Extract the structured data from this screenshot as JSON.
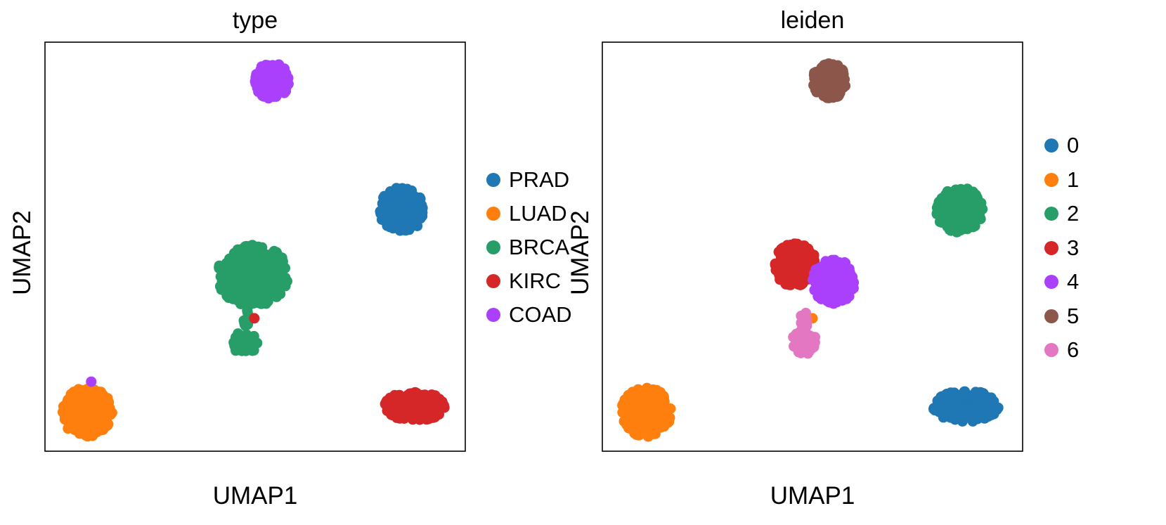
{
  "chart_data": [
    {
      "type": "scatter",
      "title": "type",
      "xlabel": "UMAP1",
      "ylabel": "UMAP2",
      "xlim": [
        0,
        10
      ],
      "ylim": [
        0,
        10
      ],
      "grid": false,
      "legend_placement": "right",
      "series": [
        {
          "name": "PRAD",
          "color": "#1f77b4",
          "clusters": [
            {
              "cx": 8.5,
              "cy": 5.9,
              "rx": 0.55,
              "ry": 0.55,
              "n": 190
            }
          ]
        },
        {
          "name": "LUAD",
          "color": "#ff7f0e",
          "clusters": [
            {
              "cx": 1.0,
              "cy": 0.95,
              "rx": 0.6,
              "ry": 0.6,
              "n": 200
            }
          ]
        },
        {
          "name": "BRCA",
          "color": "#279e68",
          "clusters": [
            {
              "cx": 4.95,
              "cy": 4.3,
              "rx": 0.85,
              "ry": 0.75,
              "n": 300
            },
            {
              "cx": 4.75,
              "cy": 2.65,
              "rx": 0.3,
              "ry": 0.28,
              "n": 40
            },
            {
              "cx": 4.8,
              "cy": 3.2,
              "rx": 0.08,
              "ry": 0.28,
              "n": 12
            }
          ]
        },
        {
          "name": "KIRC",
          "color": "#d62728",
          "clusters": [
            {
              "cx": 8.8,
              "cy": 1.1,
              "rx": 0.75,
              "ry": 0.35,
              "n": 200
            },
            {
              "cx": 4.98,
              "cy": 3.25,
              "rx": 0.0,
              "ry": 0.0,
              "n": 1
            }
          ]
        },
        {
          "name": "COAD",
          "color": "#aa40fc",
          "clusters": [
            {
              "cx": 5.4,
              "cy": 9.05,
              "rx": 0.4,
              "ry": 0.45,
              "n": 150
            },
            {
              "cx": 1.1,
              "cy": 1.7,
              "rx": 0.0,
              "ry": 0.0,
              "n": 1
            }
          ]
        }
      ]
    },
    {
      "type": "scatter",
      "title": "leiden",
      "xlabel": "UMAP1",
      "ylabel": "UMAP2",
      "xlim": [
        0,
        10
      ],
      "ylim": [
        0,
        10
      ],
      "grid": false,
      "legend_placement": "right",
      "series": [
        {
          "name": "0",
          "color": "#1f77b4",
          "clusters": [
            {
              "cx": 8.65,
              "cy": 1.1,
              "rx": 0.78,
              "ry": 0.38,
              "n": 200
            }
          ]
        },
        {
          "name": "1",
          "color": "#ff7f0e",
          "clusters": [
            {
              "cx": 1.05,
              "cy": 0.95,
              "rx": 0.6,
              "ry": 0.6,
              "n": 200
            },
            {
              "cx": 5.0,
              "cy": 3.25,
              "rx": 0.0,
              "ry": 0.0,
              "n": 1
            }
          ]
        },
        {
          "name": "2",
          "color": "#279e68",
          "clusters": [
            {
              "cx": 8.5,
              "cy": 5.9,
              "rx": 0.55,
              "ry": 0.55,
              "n": 190
            }
          ]
        },
        {
          "name": "3",
          "color": "#d62728",
          "clusters": [
            {
              "cx": 4.6,
              "cy": 4.55,
              "rx": 0.5,
              "ry": 0.55,
              "n": 180
            }
          ]
        },
        {
          "name": "4",
          "color": "#aa40fc",
          "clusters": [
            {
              "cx": 5.5,
              "cy": 4.15,
              "rx": 0.5,
              "ry": 0.55,
              "n": 170
            }
          ]
        },
        {
          "name": "5",
          "color": "#8c564b",
          "clusters": [
            {
              "cx": 5.4,
              "cy": 9.05,
              "rx": 0.4,
              "ry": 0.45,
              "n": 150
            }
          ]
        },
        {
          "name": "6",
          "color": "#e377c2",
          "clusters": [
            {
              "cx": 4.8,
              "cy": 2.65,
              "rx": 0.3,
              "ry": 0.28,
              "n": 40
            },
            {
              "cx": 4.8,
              "cy": 3.2,
              "rx": 0.08,
              "ry": 0.28,
              "n": 12
            }
          ]
        }
      ]
    }
  ]
}
